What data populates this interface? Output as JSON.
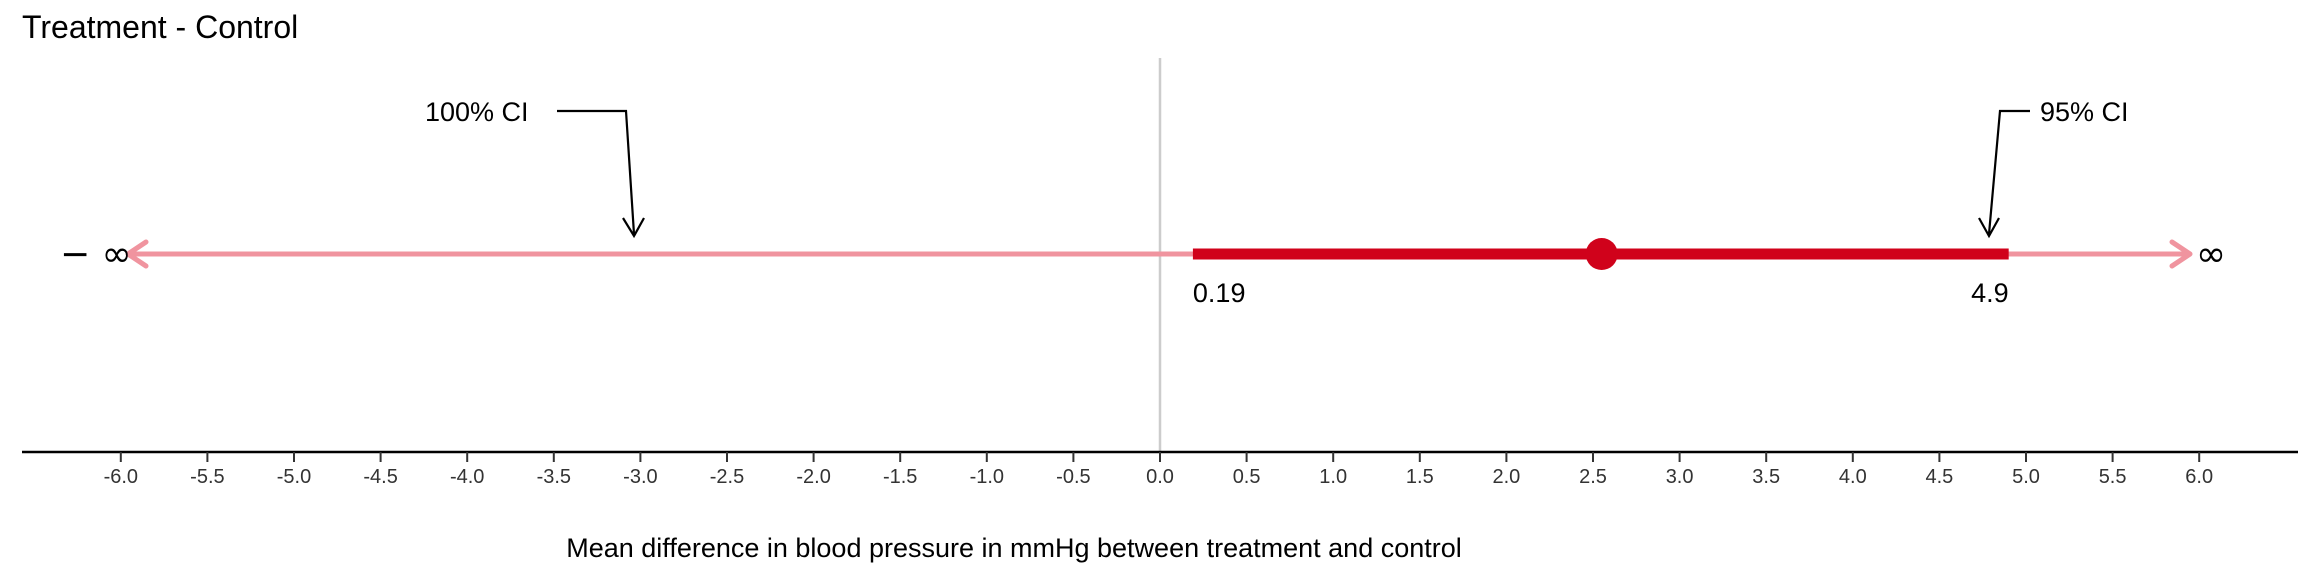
{
  "chart_data": {
    "type": "interval",
    "title": "Treatment - Control",
    "xlabel": "Mean difference in blood pressure in mmHg between treatment and control",
    "xlim": [
      -6.6,
      6.6
    ],
    "ticks": [
      -6.0,
      -5.5,
      -5.0,
      -4.5,
      -4.0,
      -3.5,
      -3.0,
      -2.5,
      -2.0,
      -1.5,
      -1.0,
      -0.5,
      0.0,
      0.5,
      1.0,
      1.5,
      2.0,
      2.5,
      3.0,
      3.5,
      4.0,
      4.5,
      5.0,
      5.5,
      6.0
    ],
    "tick_labels": [
      "-6.0",
      "-5.5",
      "-5.0",
      "-4.5",
      "-4.0",
      "-3.5",
      "-3.0",
      "-2.5",
      "-2.0",
      "-1.5",
      "-1.0",
      "-0.5",
      "0.0",
      "0.5",
      "1.0",
      "1.5",
      "2.0",
      "2.5",
      "3.0",
      "3.5",
      "4.0",
      "4.5",
      "5.0",
      "5.5",
      "6.0"
    ],
    "reference_line": 0.0,
    "point_estimate": 2.55,
    "ci95": {
      "label": "95% CI",
      "lower": 0.19,
      "upper": 4.9,
      "lower_label": "0.19",
      "upper_label": "4.9"
    },
    "ci100": {
      "label": "100% CI",
      "lower_label": "− ∞",
      "upper_label": "∞"
    },
    "colors": {
      "ci95": "#d0021b",
      "ci100": "#f0949f",
      "refline": "#cccccc",
      "axis": "#000000"
    }
  }
}
